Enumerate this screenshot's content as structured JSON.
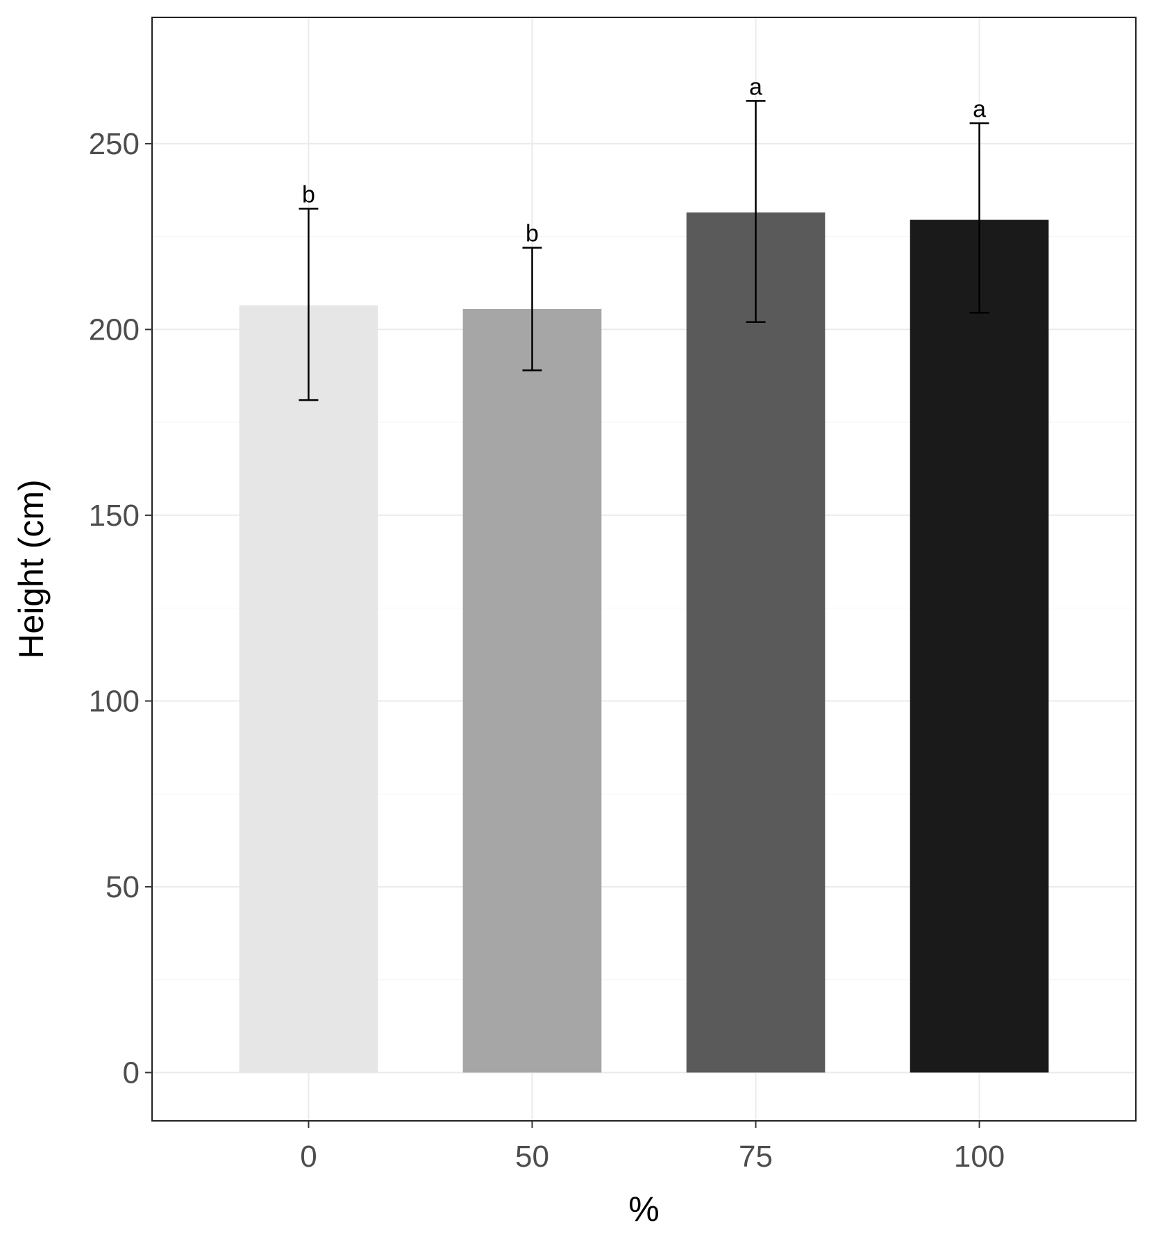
{
  "chart_data": {
    "type": "bar",
    "title": "",
    "xlabel": "%",
    "ylabel": "Height (cm)",
    "categories": [
      "0",
      "50",
      "75",
      "100"
    ],
    "values": [
      206.5,
      205.5,
      231.5,
      229.5
    ],
    "error_upper": [
      232.5,
      222,
      261.5,
      255.5
    ],
    "error_lower": [
      181,
      189,
      202,
      204.5
    ],
    "significance_labels": [
      "b",
      "b",
      "a",
      "a"
    ],
    "bar_colors": [
      "#e6e6e6",
      "#a6a6a6",
      "#5a5a5a",
      "#1a1a1a"
    ],
    "ylim": [
      -13,
      284
    ],
    "yticks": [
      0,
      50,
      100,
      150,
      200,
      250
    ],
    "ytick_labels": [
      "0",
      "50",
      "100",
      "150",
      "200",
      "250"
    ],
    "grid": true,
    "legend": "none"
  }
}
